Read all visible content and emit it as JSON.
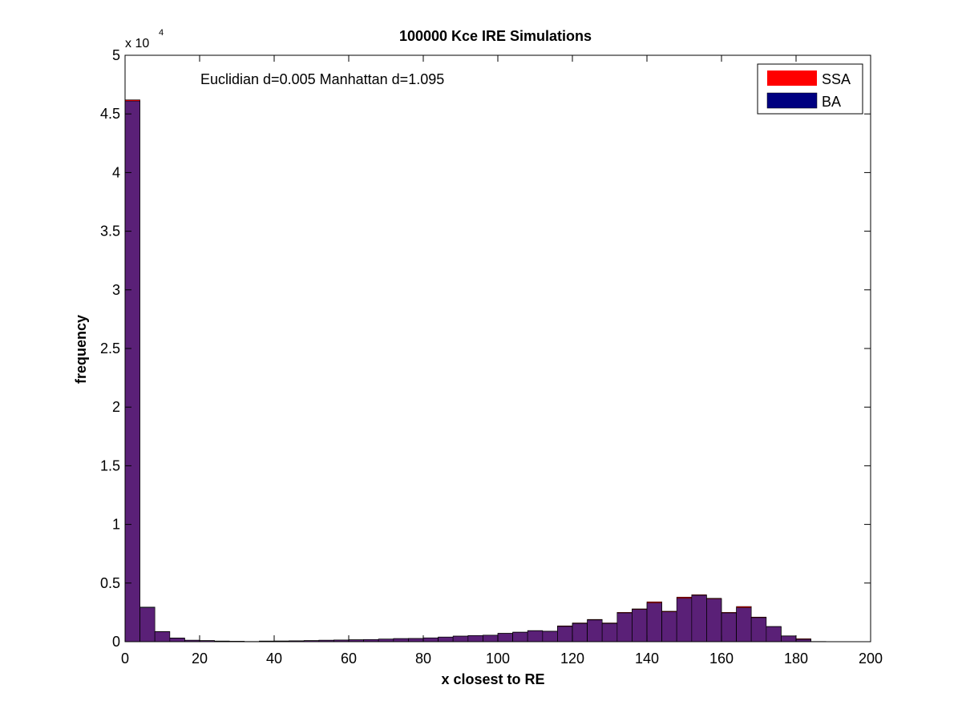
{
  "chart_data": {
    "type": "bar",
    "title": "100000 Kce IRE Simulations",
    "xlabel": "x closest to RE",
    "ylabel": "frequency",
    "annotation": "Euclidian d=0.005  Manhattan d=1.095",
    "y_exponent_base": "x 10",
    "y_exponent_power": "4",
    "xlim": [
      0,
      200
    ],
    "ylim": [
      0,
      50000
    ],
    "xticks": [
      "0",
      "20",
      "40",
      "60",
      "80",
      "100",
      "120",
      "140",
      "160",
      "180",
      "200"
    ],
    "yticks": [
      "0",
      "0.5",
      "1",
      "1.5",
      "2",
      "2.5",
      "3",
      "3.5",
      "4",
      "4.5",
      "5"
    ],
    "ytick_values": [
      0,
      5000,
      10000,
      15000,
      20000,
      25000,
      30000,
      35000,
      40000,
      45000,
      50000
    ],
    "xtick_values": [
      0,
      20,
      40,
      60,
      80,
      100,
      120,
      140,
      160,
      180,
      200
    ],
    "bin_width": 4,
    "bin_start": [
      0,
      4,
      8,
      12,
      16,
      20,
      24,
      28,
      32,
      36,
      40,
      44,
      48,
      52,
      56,
      60,
      64,
      68,
      72,
      76,
      80,
      84,
      88,
      92,
      96,
      100,
      104,
      108,
      112,
      116,
      120,
      124,
      128,
      132,
      136,
      140,
      144,
      148,
      152,
      156,
      160,
      164,
      168,
      172,
      176,
      180,
      184,
      188,
      192,
      196
    ],
    "legend_position": "top-right",
    "series": [
      {
        "name": "SSA",
        "color": "#ff0000",
        "values": [
          46200,
          2900,
          850,
          300,
          120,
          90,
          60,
          40,
          20,
          60,
          60,
          80,
          100,
          130,
          150,
          170,
          190,
          230,
          270,
          280,
          330,
          400,
          480,
          530,
          560,
          720,
          820,
          950,
          900,
          1350,
          1600,
          1900,
          1600,
          2500,
          2800,
          3400,
          2600,
          3800,
          4000,
          3700,
          2500,
          3000,
          2100,
          1300,
          500,
          250,
          20,
          0,
          0,
          0
        ]
      },
      {
        "name": "BA",
        "color": "#000080",
        "values": [
          46100,
          2950,
          870,
          320,
          130,
          100,
          50,
          30,
          15,
          50,
          60,
          70,
          90,
          120,
          140,
          160,
          180,
          220,
          260,
          270,
          320,
          390,
          470,
          520,
          550,
          700,
          800,
          930,
          880,
          1300,
          1550,
          1850,
          1550,
          2450,
          2750,
          3300,
          2550,
          3700,
          3950,
          3650,
          2450,
          2900,
          2050,
          1280,
          480,
          200,
          15,
          0,
          0,
          0
        ]
      }
    ],
    "overlap_color": "#5a2077"
  }
}
